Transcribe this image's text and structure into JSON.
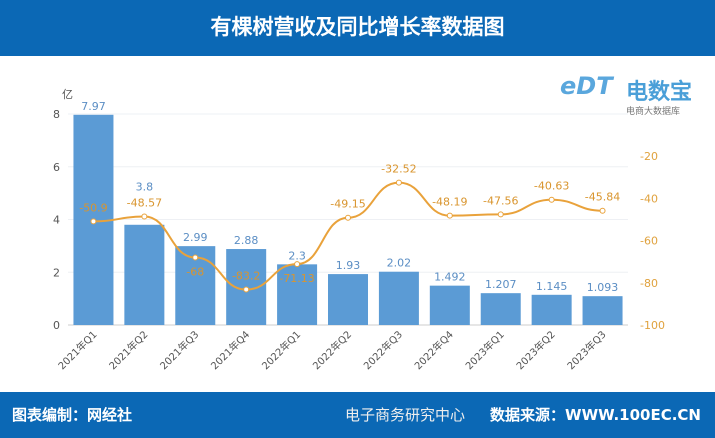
{
  "header": {
    "title": "有棵树营收及同比增长率数据图"
  },
  "footer": {
    "left": "图表编制：网经社",
    "right": "数据来源：WWW.100EC.CN",
    "watermark": "电子商务研究中心"
  },
  "logo": {
    "mark": "eDT",
    "name": "电数宝",
    "sub": "电商大数据库"
  },
  "colors": {
    "bar": "#5b9bd5",
    "line": "#e9a23b",
    "header": "#0b68b5"
  },
  "chart_data": {
    "type": "bar+line",
    "categories": [
      "2021年Q1",
      "2021年Q2",
      "2021年Q3",
      "2021年Q4",
      "2022年Q1",
      "2022年Q2",
      "2022年Q3",
      "2022年Q4",
      "2023年Q1",
      "2023年Q2",
      "2023年Q3"
    ],
    "ylabel": "亿",
    "ylim": [
      0,
      8
    ],
    "yticks": [
      "0",
      "2",
      "4",
      "6",
      "8"
    ],
    "y2lim": [
      -100,
      0
    ],
    "y2ticks": [
      "-20",
      "-40",
      "-60",
      "-80",
      "-100"
    ],
    "series": [
      {
        "type": "bar",
        "values": [
          7.97,
          3.8,
          2.99,
          2.88,
          2.3,
          1.93,
          2.02,
          1.492,
          1.207,
          1.145,
          1.093
        ],
        "labels": [
          "7.97",
          "3.8",
          "2.99",
          "2.88",
          "2.3",
          "1.93",
          "2.02",
          "1.492",
          "1.207",
          "1.145",
          "1.093"
        ]
      },
      {
        "type": "line",
        "axis": "right",
        "values": [
          -50.9,
          -48.57,
          -68,
          -83.2,
          -71.13,
          -49.15,
          -32.52,
          -48.19,
          -47.56,
          -40.63,
          -45.84
        ],
        "labels": [
          "-50.9",
          "-48.57",
          "-68",
          "-83.2",
          "-71.13",
          "-49.15",
          "-32.52",
          "-48.19",
          "-47.56",
          "-40.63",
          "-45.84"
        ]
      }
    ],
    "grid": true
  }
}
